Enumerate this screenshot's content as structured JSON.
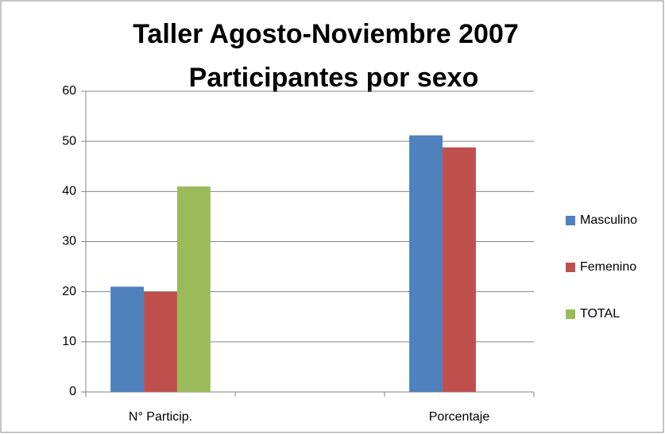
{
  "chart_data": {
    "type": "bar",
    "title": "Taller Agosto-Noviembre 2007",
    "subtitle": "Participantes por sexo",
    "categories": [
      "N° Particip.",
      null,
      "Porcentaje"
    ],
    "series": [
      {
        "name": "Masculino",
        "color": "#4f81bd",
        "values": [
          21,
          null,
          51.2
        ]
      },
      {
        "name": "Femenino",
        "color": "#c0504d",
        "values": [
          20,
          null,
          48.8
        ]
      },
      {
        "name": "TOTAL",
        "color": "#9bbb59",
        "values": [
          41,
          null,
          null
        ]
      }
    ],
    "ylim": [
      0,
      60
    ],
    "yticks": [
      0,
      10,
      20,
      30,
      40,
      50,
      60
    ],
    "grid": true,
    "legend": "right"
  }
}
